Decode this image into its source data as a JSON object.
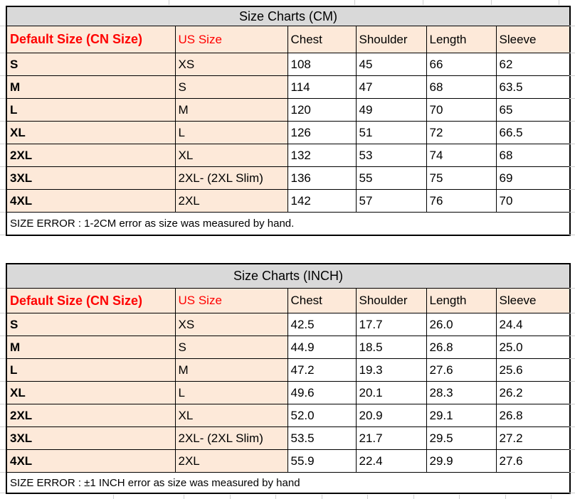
{
  "colors": {
    "title_bg": "#d9d9d9",
    "peach": "#fde9d9",
    "red": "#ff0000",
    "border": "#000000",
    "gridline": "#cfcfcf"
  },
  "chart_data": [
    {
      "type": "table",
      "title": "Size Charts (CM)",
      "columns": [
        "Default Size (CN Size)",
        "US Size",
        "Chest",
        "Shoulder",
        "Length",
        "Sleeve"
      ],
      "rows": [
        [
          "S",
          "XS",
          "108",
          "45",
          "66",
          "62"
        ],
        [
          "M",
          "S",
          "114",
          "47",
          "68",
          "63.5"
        ],
        [
          "L",
          "M",
          "120",
          "49",
          "70",
          "65"
        ],
        [
          "XL",
          "L",
          "126",
          "51",
          "72",
          "66.5"
        ],
        [
          "2XL",
          "XL",
          "132",
          "53",
          "74",
          "68"
        ],
        [
          "3XL",
          "2XL- (2XL Slim)",
          "136",
          "55",
          "75",
          "69"
        ],
        [
          "4XL",
          "2XL",
          "142",
          "57",
          "76",
          "70"
        ]
      ],
      "footer": "SIZE ERROR : 1-2CM error as size was measured by hand."
    },
    {
      "type": "table",
      "title": "Size Charts (INCH)",
      "columns": [
        "Default Size (CN Size)",
        "US Size",
        "Chest",
        "Shoulder",
        "Length",
        "Sleeve"
      ],
      "rows": [
        [
          "S",
          "XS",
          "42.5",
          "17.7",
          "26.0",
          "24.4"
        ],
        [
          "M",
          "S",
          "44.9",
          "18.5",
          "26.8",
          "25.0"
        ],
        [
          "L",
          "M",
          "47.2",
          "19.3",
          "27.6",
          "25.6"
        ],
        [
          "XL",
          "L",
          "49.6",
          "20.1",
          "28.3",
          "26.2"
        ],
        [
          "2XL",
          "XL",
          "52.0",
          "20.9",
          "29.1",
          "26.8"
        ],
        [
          "3XL",
          "2XL- (2XL Slim)",
          "53.5",
          "21.7",
          "29.5",
          "27.2"
        ],
        [
          "4XL",
          "2XL",
          "55.9",
          "22.4",
          "29.9",
          "27.6"
        ]
      ],
      "footer": "SIZE ERROR : ±1 INCH error as size was measured by hand"
    }
  ]
}
